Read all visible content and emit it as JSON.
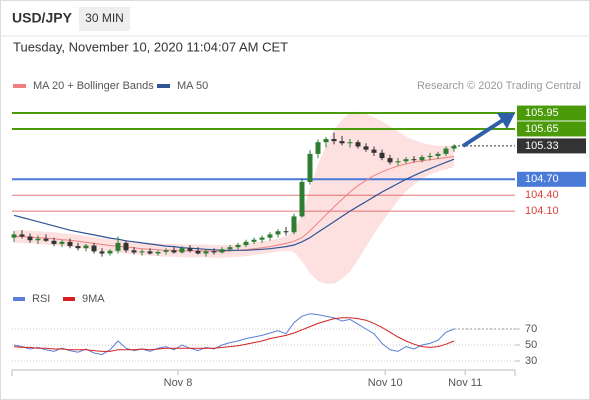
{
  "header": {
    "symbol": "USD/JPY",
    "timeframe": "30 MIN",
    "timestamp": "Tuesday, November 10, 2020 11:04:07 AM CET"
  },
  "chart_data": [
    {
      "type": "candlestick",
      "source": "Research © 2020 Trading Central",
      "xlim": [
        -0.25,
        62.625
      ],
      "ylim": [
        102.7,
        106.3
      ],
      "xticks": [
        {
          "value": 20.5,
          "label": "Nov 8"
        },
        {
          "value": 46.4,
          "label": "Nov 10"
        },
        {
          "value": 56.4,
          "label": "Nov 11"
        }
      ],
      "up_color": "#2e7d32",
      "down_color": "#333333",
      "band_color": "#fde0e0",
      "candles": {
        "open": [
          103.6,
          103.66,
          103.62,
          103.55,
          103.58,
          103.54,
          103.48,
          103.52,
          103.44,
          103.4,
          103.45,
          103.34,
          103.3,
          103.35,
          103.5,
          103.36,
          103.32,
          103.34,
          103.3,
          103.33,
          103.36,
          103.32,
          103.4,
          103.35,
          103.3,
          103.34,
          103.32,
          103.38,
          103.42,
          103.46,
          103.52,
          103.56,
          103.6,
          103.66,
          103.72,
          103.7,
          104.0,
          104.65,
          105.18,
          105.4,
          105.46,
          105.42,
          105.38,
          105.4,
          105.32,
          105.26,
          105.2,
          105.1,
          105.02,
          105.04,
          105.08,
          105.06,
          105.12,
          105.14,
          105.18,
          105.28
        ],
        "high": [
          103.72,
          103.74,
          103.68,
          103.64,
          103.66,
          103.6,
          103.56,
          103.58,
          103.5,
          103.48,
          103.5,
          103.4,
          103.38,
          103.62,
          103.54,
          103.42,
          103.38,
          103.4,
          103.36,
          103.4,
          103.42,
          103.44,
          103.46,
          103.42,
          103.38,
          103.4,
          103.42,
          103.46,
          103.5,
          103.56,
          103.6,
          103.64,
          103.7,
          103.76,
          103.8,
          104.05,
          104.72,
          105.25,
          105.45,
          105.5,
          105.58,
          105.52,
          105.46,
          105.44,
          105.38,
          105.32,
          105.26,
          105.16,
          105.1,
          105.12,
          105.14,
          105.16,
          105.2,
          105.22,
          105.32,
          105.36
        ],
        "low": [
          103.52,
          103.58,
          103.5,
          103.48,
          103.52,
          103.44,
          103.42,
          103.4,
          103.36,
          103.34,
          103.3,
          103.24,
          103.26,
          103.3,
          103.32,
          103.28,
          103.26,
          103.28,
          103.26,
          103.28,
          103.3,
          103.3,
          103.32,
          103.28,
          103.24,
          103.28,
          103.3,
          103.34,
          103.38,
          103.42,
          103.48,
          103.5,
          103.54,
          103.6,
          103.64,
          103.66,
          103.98,
          104.6,
          105.1,
          105.3,
          105.36,
          105.34,
          105.3,
          105.28,
          105.22,
          105.14,
          105.06,
          104.98,
          104.96,
          105.0,
          105.02,
          105.02,
          105.06,
          105.08,
          105.14,
          105.22
        ],
        "close": [
          103.66,
          103.62,
          103.55,
          103.58,
          103.54,
          103.48,
          103.52,
          103.44,
          103.4,
          103.45,
          103.34,
          103.3,
          103.35,
          103.5,
          103.36,
          103.32,
          103.34,
          103.3,
          103.33,
          103.36,
          103.32,
          103.4,
          103.35,
          103.3,
          103.34,
          103.32,
          103.38,
          103.42,
          103.46,
          103.52,
          103.56,
          103.6,
          103.66,
          103.72,
          103.7,
          104.0,
          104.65,
          105.18,
          105.4,
          105.46,
          105.42,
          105.38,
          105.4,
          105.32,
          105.26,
          105.2,
          105.1,
          105.02,
          105.04,
          105.08,
          105.06,
          105.12,
          105.14,
          105.18,
          105.28,
          105.33
        ]
      },
      "series": [
        {
          "name": "MA 20 + Bollinger Bands",
          "color": "#f08080",
          "values": [
            103.62,
            103.62,
            103.61,
            103.6,
            103.59,
            103.58,
            103.56,
            103.55,
            103.53,
            103.51,
            103.49,
            103.47,
            103.45,
            103.44,
            103.42,
            103.41,
            103.39,
            103.38,
            103.37,
            103.36,
            103.36,
            103.35,
            103.35,
            103.35,
            103.35,
            103.34,
            103.34,
            103.35,
            103.36,
            103.37,
            103.39,
            103.41,
            103.43,
            103.46,
            103.49,
            103.53,
            103.6,
            103.73,
            103.88,
            104.03,
            104.18,
            104.32,
            104.46,
            104.58,
            104.68,
            104.77,
            104.84,
            104.9,
            104.95,
            104.99,
            105.02,
            105.05,
            105.07,
            105.09,
            105.11,
            105.13
          ],
          "upper": [
            103.74,
            103.74,
            103.73,
            103.72,
            103.71,
            103.7,
            103.68,
            103.67,
            103.65,
            103.63,
            103.61,
            103.59,
            103.57,
            103.56,
            103.54,
            103.53,
            103.51,
            103.5,
            103.49,
            103.48,
            103.48,
            103.47,
            103.47,
            103.47,
            103.47,
            103.46,
            103.46,
            103.47,
            103.48,
            103.49,
            103.51,
            103.53,
            103.55,
            103.58,
            103.63,
            103.73,
            104.05,
            104.53,
            104.98,
            105.33,
            105.63,
            105.82,
            105.96,
            105.98,
            105.93,
            105.87,
            105.79,
            105.7,
            105.6,
            105.51,
            105.44,
            105.39,
            105.35,
            105.33,
            105.33,
            105.33
          ],
          "lower": [
            103.5,
            103.5,
            103.49,
            103.48,
            103.47,
            103.46,
            103.44,
            103.43,
            103.41,
            103.39,
            103.37,
            103.35,
            103.33,
            103.32,
            103.3,
            103.29,
            103.27,
            103.26,
            103.25,
            103.24,
            103.24,
            103.23,
            103.23,
            103.23,
            103.23,
            103.22,
            103.22,
            103.23,
            103.24,
            103.25,
            103.27,
            103.29,
            103.31,
            103.34,
            103.35,
            103.33,
            103.15,
            102.93,
            102.78,
            102.73,
            102.73,
            102.82,
            102.96,
            103.18,
            103.43,
            103.67,
            103.89,
            104.1,
            104.3,
            104.47,
            104.6,
            104.71,
            104.79,
            104.85,
            104.89,
            104.93
          ]
        },
        {
          "name": "MA 50",
          "color": "#2f5597",
          "values": [
            104.02,
            103.98,
            103.94,
            103.9,
            103.86,
            103.82,
            103.78,
            103.74,
            103.71,
            103.68,
            103.65,
            103.62,
            103.59,
            103.57,
            103.54,
            103.52,
            103.5,
            103.48,
            103.46,
            103.44,
            103.43,
            103.41,
            103.4,
            103.39,
            103.38,
            103.37,
            103.36,
            103.36,
            103.36,
            103.36,
            103.37,
            103.38,
            103.39,
            103.41,
            103.43,
            103.46,
            103.52,
            103.6,
            103.7,
            103.8,
            103.9,
            104.0,
            104.1,
            104.19,
            104.28,
            104.37,
            104.46,
            104.54,
            104.62,
            104.7,
            104.77,
            104.84,
            104.9,
            104.96,
            105.02,
            105.08
          ]
        }
      ],
      "levels": [
        {
          "value": 105.95,
          "color": "#4a9a0a",
          "boxed": true
        },
        {
          "value": 105.65,
          "color": "#4a9a0a",
          "boxed": true
        },
        {
          "value": 105.33,
          "color": "#333333",
          "boxed": true,
          "dotted": true
        },
        {
          "value": 104.7,
          "label": "104.70",
          "color": "#4a7ad8",
          "boxed": true
        },
        {
          "value": 104.4,
          "label": "104.40",
          "color": "#d94040",
          "boxed": false
        },
        {
          "value": 104.1,
          "label": "104.10",
          "color": "#d94040",
          "boxed": false
        }
      ]
    },
    {
      "type": "line",
      "xlim": [
        -0.25,
        62.625
      ],
      "ylim": [
        18,
        100
      ],
      "yticks": [
        70,
        50,
        30
      ],
      "series": [
        {
          "name": "RSI",
          "color": "#5b7fd8",
          "values": [
            50,
            48,
            45,
            47,
            44,
            42,
            46,
            43,
            41,
            45,
            40,
            38,
            44,
            55,
            46,
            43,
            45,
            42,
            46,
            48,
            44,
            50,
            46,
            43,
            47,
            45,
            50,
            53,
            55,
            58,
            60,
            62,
            65,
            68,
            64,
            78,
            86,
            89,
            88,
            86,
            84,
            80,
            82,
            76,
            70,
            64,
            52,
            44,
            42,
            48,
            45,
            50,
            52,
            56,
            66,
            70
          ]
        },
        {
          "name": "9MA",
          "color": "#d62020",
          "values": [
            48,
            47,
            47,
            46,
            46,
            45,
            45,
            44,
            44,
            44,
            43,
            42,
            42,
            44,
            44,
            44,
            45,
            44,
            45,
            46,
            46,
            46,
            46,
            46,
            46,
            46,
            47,
            48,
            49,
            51,
            53,
            55,
            58,
            60,
            62,
            65,
            69,
            73,
            77,
            80,
            83,
            84,
            84,
            83,
            81,
            77,
            72,
            66,
            60,
            55,
            51,
            48,
            47,
            48,
            51,
            55
          ]
        }
      ]
    }
  ]
}
